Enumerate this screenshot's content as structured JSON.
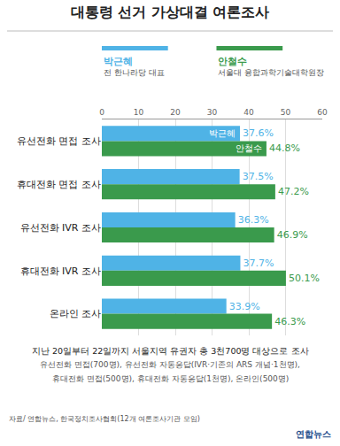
{
  "chart_data": {
    "type": "bar",
    "orientation": "horizontal",
    "title": "대통령 선거 가상대결 여론조사",
    "categories": [
      "유선전화 면접 조사",
      "휴대전화 면접 조사",
      "유선전화 IVR 조사",
      "휴대전화 IVR 조사",
      "온라인 조사"
    ],
    "series": [
      {
        "name": "박근혜",
        "description": "전 한나라당 대표",
        "color": "#4fb3e6",
        "values": [
          37.6,
          37.5,
          36.3,
          37.7,
          33.9
        ],
        "value_labels": [
          "37.6%",
          "37.5%",
          "36.3%",
          "37.7%",
          "33.9%"
        ]
      },
      {
        "name": "안철수",
        "description": "서울대 융합과학기술대학원장",
        "color": "#3a9a4c",
        "values": [
          44.8,
          47.2,
          46.9,
          50.1,
          46.3
        ],
        "value_labels": [
          "44.8%",
          "47.2%",
          "46.9%",
          "50.1%",
          "46.3%"
        ]
      }
    ],
    "xlim": [
      0,
      60
    ],
    "xticks": [
      0,
      10,
      20,
      30,
      40,
      50,
      60
    ],
    "grid": true,
    "data_labels": true,
    "notes": [
      "지난 20일부터 22일까지 서울지역 유권자 총 3천700명 대상으로 조사",
      "유선전화 면접(700명), 유선전화 자동응답(IVR·기존의 ARS 개념·1천명),",
      "휴대전화 면접(500명), 휴대전화 자동응답(1천명), 온라인(500명)"
    ],
    "source": "자료/ 연합뉴스, 한국정치조사협회(12개 여론조사기관 모임)",
    "credit": "연합뉴스"
  }
}
